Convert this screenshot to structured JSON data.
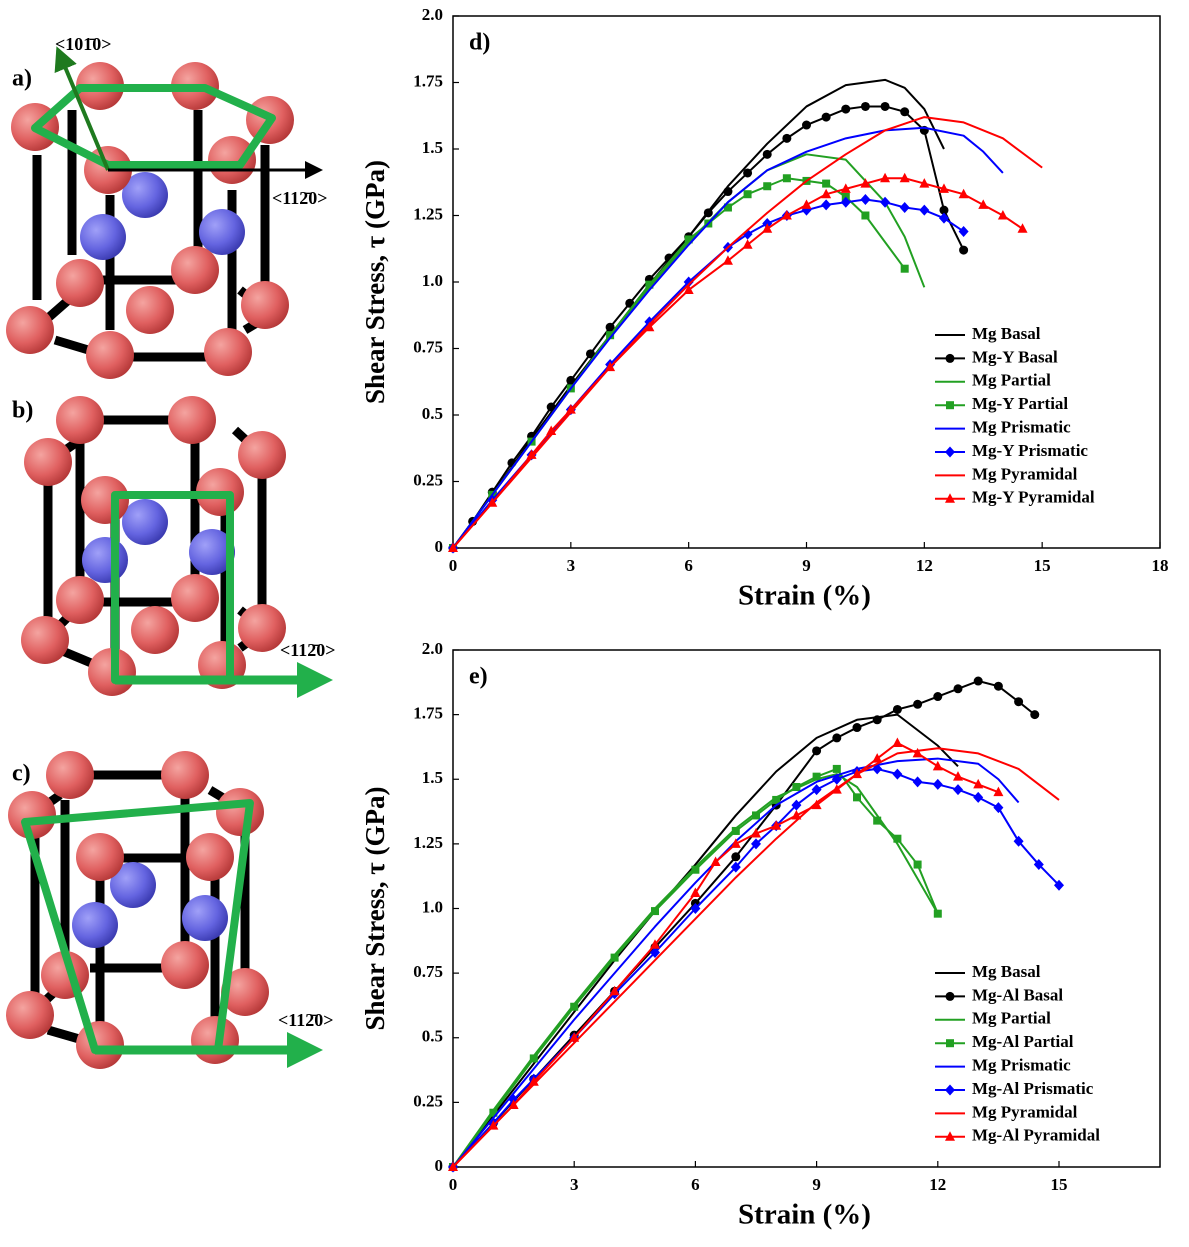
{
  "diagrams": [
    {
      "label": "a)",
      "directions": [
        "<101̄0>",
        "<112̄0>"
      ]
    },
    {
      "label": "b)",
      "directions": [
        "<112̄0>"
      ]
    },
    {
      "label": "c)",
      "directions": [
        "<112̄0>"
      ]
    }
  ],
  "chart_data": [
    {
      "type": "line",
      "panel_label": "d)",
      "xlabel": "Strain (%)",
      "ylabel": "Shear Stress, τ (GPa)",
      "xlim": [
        0,
        18
      ],
      "xticks": [
        0,
        3,
        6,
        9,
        12,
        15,
        18
      ],
      "ylim": [
        0,
        2
      ],
      "yticks": [
        0,
        0.25,
        0.5,
        0.75,
        {
          "value": 1,
          "label": "1.0"
        },
        1.25,
        1.5,
        1.75,
        {
          "value": 2,
          "label": "2.0"
        }
      ],
      "legend": "lower right",
      "series": [
        {
          "name": "Mg Basal",
          "color": "#000000",
          "marker": "none",
          "x": [
            0,
            1,
            2,
            3,
            4,
            5,
            6,
            7,
            8,
            9,
            10,
            11,
            11.5,
            12,
            12.5
          ],
          "values": [
            0,
            0.2,
            0.41,
            0.61,
            0.8,
            0.99,
            1.17,
            1.36,
            1.52,
            1.66,
            1.74,
            1.76,
            1.73,
            1.65,
            1.5
          ]
        },
        {
          "name": "Mg-Y Basal",
          "color": "#000000",
          "marker": "circle",
          "x": [
            0,
            0.5,
            1,
            1.5,
            2,
            2.5,
            3,
            3.5,
            4,
            4.5,
            5,
            5.5,
            6,
            6.5,
            7,
            7.5,
            8,
            8.5,
            9,
            9.5,
            10,
            10.5,
            11,
            11.5,
            12,
            12.5,
            13
          ],
          "values": [
            0,
            0.1,
            0.21,
            0.32,
            0.42,
            0.53,
            0.63,
            0.73,
            0.83,
            0.92,
            1.01,
            1.09,
            1.17,
            1.26,
            1.34,
            1.41,
            1.48,
            1.54,
            1.59,
            1.62,
            1.65,
            1.66,
            1.66,
            1.64,
            1.57,
            1.27,
            1.12
          ]
        },
        {
          "name": "Mg Partial",
          "color": "#22a022",
          "marker": "none",
          "x": [
            0,
            1,
            2,
            3,
            4,
            5,
            6,
            7,
            8,
            9,
            10,
            11,
            11.5,
            12
          ],
          "values": [
            0,
            0.2,
            0.4,
            0.6,
            0.8,
            0.98,
            1.15,
            1.3,
            1.42,
            1.48,
            1.46,
            1.3,
            1.17,
            0.98
          ]
        },
        {
          "name": "Mg-Y Partial",
          "color": "#22a022",
          "marker": "square",
          "x": [
            0,
            1,
            2,
            3,
            4,
            5,
            6,
            6.5,
            7,
            7.5,
            8,
            8.5,
            9,
            9.5,
            10,
            10.5,
            11.5
          ],
          "values": [
            0,
            0.2,
            0.4,
            0.6,
            0.8,
            0.99,
            1.16,
            1.22,
            1.28,
            1.33,
            1.36,
            1.39,
            1.38,
            1.37,
            1.32,
            1.25,
            1.05
          ]
        },
        {
          "name": "Mg Prismatic",
          "color": "#0000ff",
          "marker": "none",
          "x": [
            0,
            1,
            2,
            3,
            4,
            5,
            6,
            7,
            8,
            9,
            10,
            11,
            12,
            13,
            13.5,
            14
          ],
          "values": [
            0,
            0.2,
            0.4,
            0.6,
            0.79,
            0.97,
            1.14,
            1.3,
            1.42,
            1.49,
            1.54,
            1.57,
            1.58,
            1.55,
            1.49,
            1.41
          ]
        },
        {
          "name": "Mg-Y Prismatic",
          "color": "#0000ff",
          "marker": "diamond",
          "x": [
            0,
            1,
            2,
            3,
            4,
            5,
            6,
            7,
            7.5,
            8,
            8.5,
            9,
            9.5,
            10,
            10.5,
            11,
            11.5,
            12,
            12.5,
            13
          ],
          "values": [
            0,
            0.18,
            0.35,
            0.52,
            0.69,
            0.85,
            1.0,
            1.13,
            1.18,
            1.22,
            1.25,
            1.27,
            1.29,
            1.3,
            1.31,
            1.3,
            1.28,
            1.27,
            1.24,
            1.19
          ]
        },
        {
          "name": "Mg Pyramidal",
          "color": "#ff0000",
          "marker": "none",
          "x": [
            0,
            1,
            2,
            3,
            4,
            5,
            6,
            7,
            8,
            9,
            10,
            11,
            12,
            13,
            14,
            15
          ],
          "values": [
            0,
            0.17,
            0.34,
            0.51,
            0.68,
            0.84,
            0.99,
            1.13,
            1.26,
            1.38,
            1.48,
            1.57,
            1.62,
            1.6,
            1.54,
            1.43
          ]
        },
        {
          "name": "Mg-Y Pyramidal",
          "color": "#ff0000",
          "marker": "triangle",
          "x": [
            0,
            1,
            2,
            2.5,
            3,
            4,
            5,
            6,
            7,
            7.5,
            8,
            8.5,
            9,
            9.5,
            10,
            10.5,
            11,
            11.5,
            12,
            12.5,
            13,
            13.5,
            14,
            14.5
          ],
          "values": [
            0,
            0.17,
            0.35,
            0.44,
            0.52,
            0.68,
            0.83,
            0.97,
            1.08,
            1.14,
            1.2,
            1.25,
            1.29,
            1.33,
            1.35,
            1.37,
            1.39,
            1.39,
            1.37,
            1.35,
            1.33,
            1.29,
            1.25,
            1.2
          ]
        }
      ]
    },
    {
      "type": "line",
      "panel_label": "e)",
      "xlabel": "Strain (%)",
      "ylabel": "Shear Stress, τ (GPa)",
      "xlim": [
        0,
        17.5
      ],
      "xticks": [
        0,
        3,
        6,
        9,
        12,
        15
      ],
      "ylim": [
        0,
        2
      ],
      "yticks": [
        0,
        0.25,
        0.5,
        0.75,
        {
          "value": 1,
          "label": "1.0"
        },
        1.25,
        1.5,
        1.75,
        {
          "value": 2,
          "label": "2.0"
        }
      ],
      "legend": "lower right",
      "series": [
        {
          "name": "Mg Basal",
          "color": "#000000",
          "marker": "none",
          "x": [
            0,
            1,
            2,
            3,
            4,
            5,
            6,
            7,
            8,
            9,
            10,
            11,
            12,
            12.5
          ],
          "values": [
            0,
            0.2,
            0.4,
            0.6,
            0.8,
            0.99,
            1.17,
            1.36,
            1.53,
            1.66,
            1.73,
            1.75,
            1.63,
            1.55
          ]
        },
        {
          "name": "Mg-Al Basal",
          "color": "#000000",
          "marker": "circle",
          "x": [
            0,
            1,
            2,
            3,
            4,
            5,
            6,
            7,
            8,
            9,
            9.5,
            10,
            10.5,
            11,
            11.5,
            12,
            12.5,
            13,
            13.5,
            14,
            14.4
          ],
          "values": [
            0,
            0.17,
            0.34,
            0.51,
            0.68,
            0.85,
            1.02,
            1.2,
            1.4,
            1.61,
            1.66,
            1.7,
            1.73,
            1.77,
            1.79,
            1.82,
            1.85,
            1.88,
            1.86,
            1.8,
            1.75
          ]
        },
        {
          "name": "Mg Partial",
          "color": "#22a022",
          "marker": "none",
          "x": [
            0,
            1,
            2,
            3,
            4,
            5,
            6,
            7,
            8,
            9,
            9.5,
            10,
            11,
            12
          ],
          "values": [
            0,
            0.22,
            0.43,
            0.63,
            0.82,
            1.0,
            1.16,
            1.31,
            1.43,
            1.5,
            1.52,
            1.47,
            1.25,
            0.98
          ]
        },
        {
          "name": "Mg-Al Partial",
          "color": "#22a022",
          "marker": "square",
          "x": [
            0,
            1,
            2,
            3,
            4,
            5,
            6,
            7,
            7.5,
            8,
            8.5,
            9,
            9.5,
            10,
            10.5,
            11,
            11.5,
            12
          ],
          "values": [
            0,
            0.21,
            0.42,
            0.62,
            0.81,
            0.99,
            1.15,
            1.3,
            1.36,
            1.42,
            1.47,
            1.51,
            1.54,
            1.43,
            1.34,
            1.27,
            1.17,
            0.98
          ]
        },
        {
          "name": "Mg Prismatic",
          "color": "#0000ff",
          "marker": "none",
          "x": [
            0,
            1,
            2,
            3,
            4,
            5,
            6,
            7,
            8,
            9,
            10,
            11,
            12,
            13,
            13.5,
            14
          ],
          "values": [
            0,
            0.19,
            0.38,
            0.57,
            0.75,
            0.93,
            1.1,
            1.26,
            1.4,
            1.49,
            1.54,
            1.57,
            1.58,
            1.56,
            1.5,
            1.41
          ]
        },
        {
          "name": "Mg-Al Prismatic",
          "color": "#0000ff",
          "marker": "diamond",
          "x": [
            0,
            1,
            1.5,
            2,
            3,
            4,
            5,
            6,
            7,
            7.5,
            8,
            8.5,
            9,
            9.5,
            10,
            10.5,
            11,
            11.5,
            12,
            12.5,
            13,
            13.5,
            14,
            14.5,
            15
          ],
          "values": [
            0,
            0.17,
            0.26,
            0.34,
            0.5,
            0.67,
            0.83,
            1.0,
            1.16,
            1.25,
            1.32,
            1.4,
            1.46,
            1.5,
            1.53,
            1.54,
            1.52,
            1.49,
            1.48,
            1.46,
            1.43,
            1.39,
            1.26,
            1.17,
            1.09
          ]
        },
        {
          "name": "Mg Pyramidal",
          "color": "#ff0000",
          "marker": "none",
          "x": [
            0,
            1,
            2,
            3,
            4,
            5,
            6,
            7,
            8,
            9,
            10,
            11,
            12,
            13,
            14,
            15
          ],
          "values": [
            0,
            0.16,
            0.32,
            0.48,
            0.64,
            0.8,
            0.96,
            1.12,
            1.27,
            1.41,
            1.52,
            1.6,
            1.62,
            1.6,
            1.54,
            1.42
          ]
        },
        {
          "name": "Mg-Al Pyramidal",
          "color": "#ff0000",
          "marker": "triangle",
          "x": [
            0,
            1,
            1.5,
            2,
            3,
            4,
            5,
            6,
            6.5,
            7,
            7.5,
            8,
            8.5,
            9,
            9.5,
            10,
            10.5,
            11,
            11.5,
            12,
            12.5,
            13,
            13.5
          ],
          "values": [
            0,
            0.16,
            0.24,
            0.33,
            0.5,
            0.68,
            0.86,
            1.06,
            1.18,
            1.25,
            1.29,
            1.32,
            1.36,
            1.4,
            1.46,
            1.52,
            1.58,
            1.64,
            1.6,
            1.55,
            1.51,
            1.48,
            1.45
          ]
        }
      ]
    }
  ]
}
